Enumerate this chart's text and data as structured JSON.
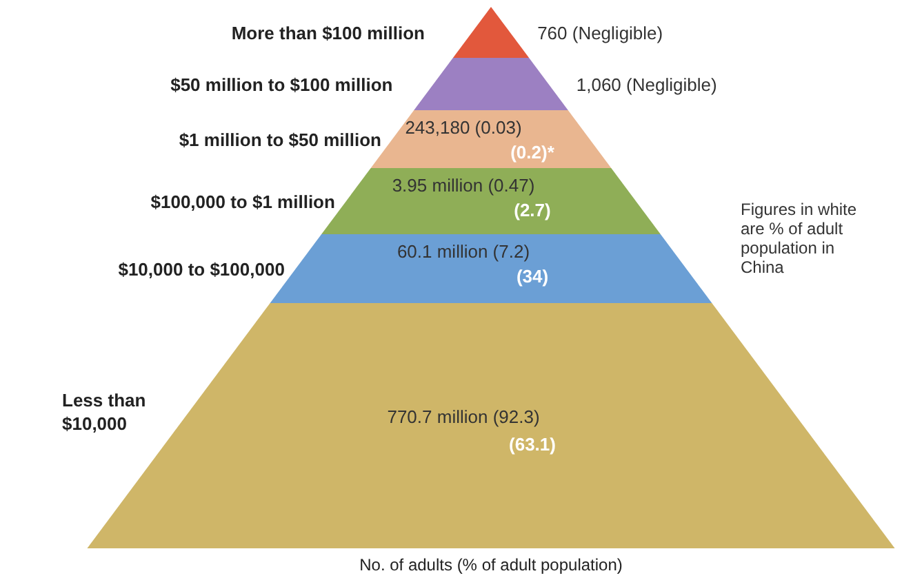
{
  "chart_data": {
    "type": "other",
    "xlabel": "No. of adults (% of adult population)",
    "categories": [
      "More than $100 million",
      "$50 million to $100 million",
      "$1 million to $50 million",
      "$100,000 to $1 million",
      "$10,000 to $100,000",
      "Less than $10,000"
    ],
    "values": [
      760,
      1060,
      243180,
      3950000,
      60100000,
      770700000
    ],
    "value_labels": [
      "760 (Negligible)",
      "1,060  (Negligible)",
      "243,180 (0.03)",
      "3.95 million (0.47)",
      "60.1 million (7.2)",
      "770.7 million (92.3)"
    ],
    "colors": [
      "#e2583c",
      "#9c80c2",
      "#e9b690",
      "#8fae57",
      "#6b9fd5",
      "#cfb668"
    ],
    "annotations": [
      "Figures in white are % of adult population in China",
      {
        "text": "(0.2)*",
        "x": "$1 million to $50 million"
      },
      {
        "text": "(2.7)",
        "x": "$100,000 to $1 million"
      },
      {
        "text": "(34)",
        "x": "$10,000 to $100,000"
      },
      {
        "text": "(63.1)",
        "x": "Less than $10,000"
      }
    ]
  }
}
